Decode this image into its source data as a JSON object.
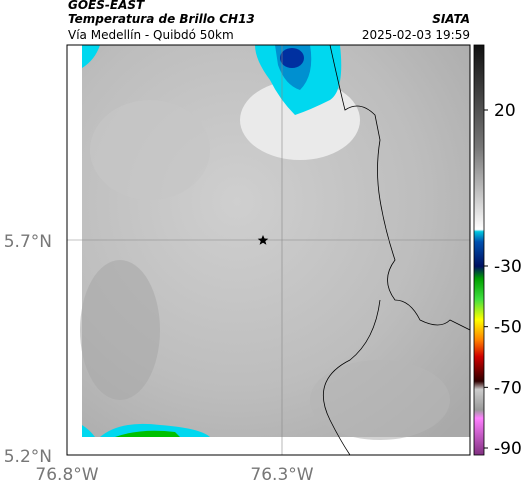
{
  "header": {
    "source": "GOES-EAST",
    "title": "Temperatura de Brillo CH13",
    "subtitle": "Vía Medellín - Quibdó 50km",
    "agency": "SIATA",
    "datetime": "2025-02-03 19:59"
  },
  "map": {
    "lat_labels": [
      "5.7°N",
      "5.2°N"
    ],
    "lon_labels": [
      "76.8°W",
      "76.3°W"
    ]
  },
  "colorbar": {
    "ticks": [
      20,
      -30,
      -50,
      -70,
      -90
    ]
  }
}
